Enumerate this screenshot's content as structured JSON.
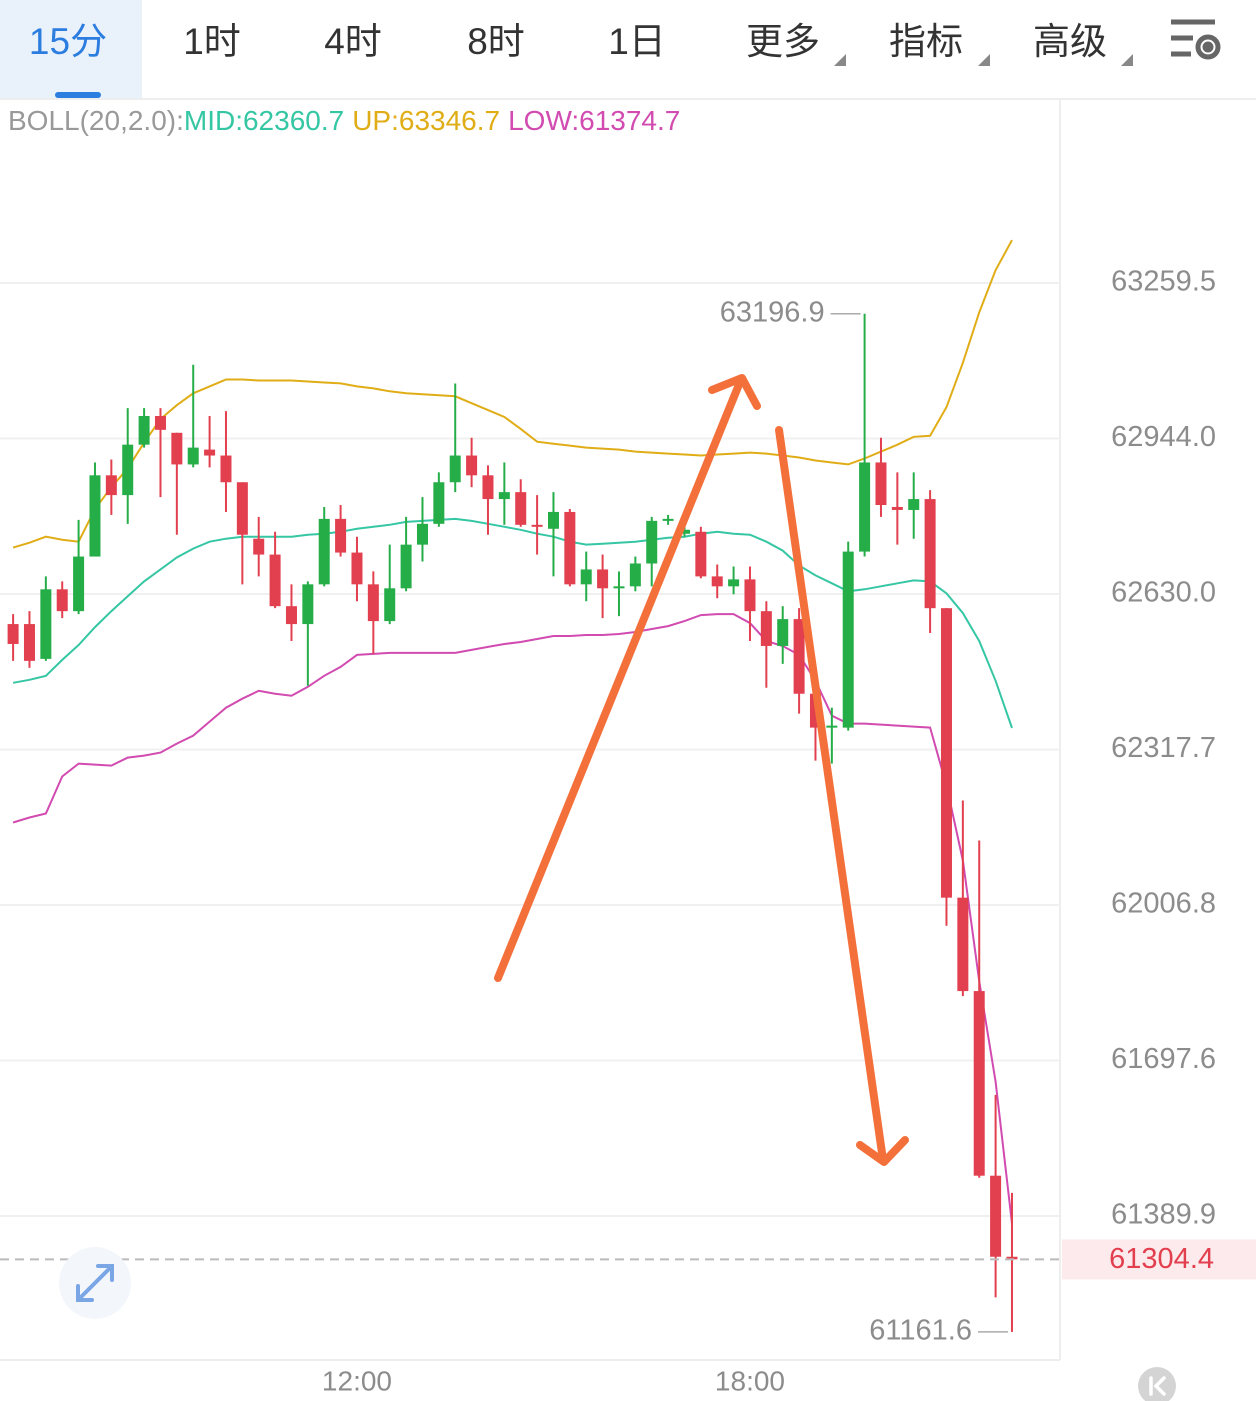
{
  "tabs": [
    "15分",
    "1时",
    "4时",
    "8时",
    "1日",
    "更多",
    "指标",
    "高级"
  ],
  "chart_data": {
    "type": "candlestick",
    "indicator_label": "BOLL(20,2.0):",
    "log_scale": true,
    "grid": true,
    "up_color": "#25ad48",
    "down_color": "#e2404f",
    "ylim": [
      61106.3,
      63632.8
    ],
    "yticks": [
      63259.5,
      {
        "value": 62944.0,
        "label": "62944.0"
      },
      {
        "value": 62630.0,
        "label": "62630.0"
      },
      62317.7,
      62006.8,
      61697.6,
      61389.9
    ],
    "categories": [
      null,
      null,
      null,
      null,
      null,
      null,
      null,
      null,
      null,
      null,
      null,
      null,
      null,
      null,
      null,
      null,
      null,
      null,
      null,
      null,
      null,
      "12:00",
      null,
      null,
      null,
      null,
      null,
      null,
      null,
      null,
      null,
      null,
      null,
      null,
      null,
      null,
      null,
      null,
      null,
      null,
      null,
      null,
      null,
      null,
      null,
      "18:00",
      null,
      null,
      null,
      null,
      null,
      null,
      null,
      null,
      null,
      null,
      null,
      null,
      null,
      null,
      null,
      null
    ],
    "open": [
      62569.5,
      62569.5,
      62499.5,
      62639.5,
      62595.5,
      62705.5,
      62869.5,
      62829.5,
      62931.5,
      62989.5,
      62955.5,
      62891.5,
      62921.5,
      62909.5,
      62855.5,
      62741.5,
      62709.5,
      62605.5,
      62569.5,
      62649.5,
      62781.5,
      62713.5,
      62649.5,
      62575.5,
      62641.5,
      62729.5,
      62771.5,
      62855.5,
      62909.5,
      62869.5,
      62821.5,
      62835.5,
      62769.5,
      62761.5,
      62795.5,
      62649.5,
      62679.5,
      62641.5,
      62645.5,
      62691.5,
      62777.5,
      62751.5,
      62755.5,
      62665.5,
      62645.5,
      62659.5,
      62595.5,
      62525.5,
      62579.5,
      62429.5,
      62361.5,
      62361.5,
      62715.5,
      62895.5,
      62805.5,
      62799.5,
      62821.5,
      62601.5,
      62021.5,
      61835.5,
      61469.5,
      61309.5
    ],
    "high": [
      62589.5,
      62595.5,
      62665.5,
      62655.5,
      62779.5,
      62895.5,
      62901.5,
      63005.5,
      63005.5,
      63005.5,
      62955.5,
      63093.5,
      62989.5,
      62999.5,
      62855.5,
      62785.5,
      62755.5,
      62649.5,
      62655.5,
      62805.5,
      62809.5,
      62745.5,
      62675.5,
      62729.5,
      62785.5,
      62825.5,
      62875.5,
      63055.5,
      62945.5,
      62889.5,
      62895.5,
      62861.5,
      62829.5,
      62835.5,
      62801.5,
      62715.5,
      62709.5,
      62675.5,
      62705.5,
      62785.5,
      62789.5,
      62785.5,
      62765.5,
      62689.5,
      62685.5,
      62685.5,
      62615.5,
      62605.5,
      62601.5,
      62445.5,
      62401.5,
      62735.5,
      63196.9,
      62945.5,
      62875.5,
      62875.5,
      62839.5,
      62601.5,
      62215.5,
      62135.5,
      61629.5,
      61435.5
    ],
    "low": [
      62495.5,
      62481.5,
      62495.5,
      62581.5,
      62589.5,
      62705.5,
      62789.5,
      62771.5,
      62925.5,
      62825.5,
      62749.5,
      62885.5,
      62885.5,
      62795.5,
      62649.5,
      62665.5,
      62601.5,
      62535.5,
      62445.5,
      62645.5,
      62705.5,
      62615.5,
      62509.5,
      62569.5,
      62635.5,
      62695.5,
      62765.5,
      62835.5,
      62845.5,
      62749.5,
      62769.5,
      62765.5,
      62709.5,
      62665.5,
      62645.5,
      62615.5,
      62581.5,
      62585.5,
      62635.5,
      62645.5,
      62769.5,
      62745.5,
      62661.5,
      62621.5,
      62629.5,
      62535.5,
      62441.5,
      62489.5,
      62389.5,
      62295.5,
      62289.5,
      62355.5,
      62705.5,
      62785.5,
      62729.5,
      62741.5,
      62551.5,
      61965.5,
      61825.5,
      61465.5,
      61229.5,
      61161.6
    ],
    "close": [
      62529.5,
      62495.5,
      62639.5,
      62595.5,
      62705.5,
      62869.5,
      62829.5,
      62931.5,
      62989.5,
      62961.5,
      62891.5,
      62925.5,
      62909.5,
      62855.5,
      62749.5,
      62709.5,
      62605.5,
      62569.5,
      62649.5,
      62781.5,
      62713.5,
      62649.5,
      62575.5,
      62641.5,
      62729.5,
      62771.5,
      62855.5,
      62909.5,
      62869.5,
      62821.5,
      62835.5,
      62769.5,
      62765.5,
      62795.5,
      62649.5,
      62679.5,
      62641.5,
      62645.5,
      62691.5,
      62777.5,
      62781.5,
      62759.5,
      62665.5,
      62645.5,
      62659.5,
      62595.5,
      62525.5,
      62579.5,
      62429.5,
      62361.5,
      62365.5,
      62715.5,
      62895.5,
      62809.5,
      62799.5,
      62821.5,
      62601.5,
      62021.5,
      61835.5,
      61469.5,
      61309.5,
      61304.4
    ],
    "series": [
      {
        "name": "MID:62360.7",
        "color": "#35c6a4",
        "values": [
          62451.5,
          62457.5,
          62465.5,
          62497.5,
          62527.5,
          62563.5,
          62595.5,
          62625.5,
          62655.5,
          62679.5,
          62703.5,
          62721.5,
          62735.5,
          62741.5,
          62745.5,
          62745.5,
          62745.5,
          62745.5,
          62749.5,
          62751.5,
          62755.5,
          62761.5,
          62765.5,
          62769.5,
          62775.5,
          62777.5,
          62779.5,
          62781.5,
          62777.5,
          62771.5,
          62765.5,
          62759.5,
          62751.5,
          62745.5,
          62735.5,
          62729.5,
          62731.5,
          62733.5,
          62735.5,
          62739.5,
          62743.5,
          62745.5,
          62751.5,
          62755.5,
          62751.5,
          62749.5,
          62735.5,
          62717.5,
          62687.5,
          62667.5,
          62651.5,
          62635.5,
          62639.5,
          62645.5,
          62651.5,
          62657.5,
          62655.5,
          62631.5,
          62591.5,
          62535.5,
          62455.5,
          62360.7
        ]
      },
      {
        "name": "UP:63346.7",
        "color": "#e0ad17",
        "values": [
          62723.5,
          62733.5,
          62745.5,
          62739.5,
          62735.5,
          62801.5,
          62845.5,
          62883.5,
          62935.5,
          62983.5,
          63011.5,
          63035.5,
          63049.5,
          63063.5,
          63063.5,
          63061.5,
          63061.5,
          63061.5,
          63059.5,
          63057.5,
          63055.5,
          63049.5,
          63045.5,
          63039.5,
          63035.5,
          63033.5,
          63031.5,
          63029.5,
          63015.5,
          63001.5,
          62987.5,
          62963.5,
          62937.5,
          62933.5,
          62929.5,
          62925.5,
          62923.5,
          62921.5,
          62917.5,
          62915.5,
          62913.5,
          62911.5,
          62909.5,
          62911.5,
          62913.5,
          62915.5,
          62913.5,
          62909.5,
          62905.5,
          62899.5,
          62895.5,
          62891.5,
          62903.5,
          62917.5,
          62931.5,
          62947.5,
          62949.5,
          63007.5,
          63097.5,
          63199.5,
          63285.5,
          63346.7
        ]
      },
      {
        "name": "LOW:61374.7",
        "color": "#d14bb0",
        "values": [
          62171.5,
          62181.5,
          62189.5,
          62263.5,
          62289.5,
          62287.5,
          62285.5,
          62301.5,
          62305.5,
          62311.5,
          62329.5,
          62345.5,
          62373.5,
          62401.5,
          62419.5,
          62435.5,
          62429.5,
          62425.5,
          62443.5,
          62465.5,
          62483.5,
          62507.5,
          62509.5,
          62511.5,
          62511.5,
          62511.5,
          62511.5,
          62511.5,
          62517.5,
          62523.5,
          62529.5,
          62533.5,
          62539.5,
          62545.5,
          62545.5,
          62547.5,
          62547.5,
          62549.5,
          62553.5,
          62559.5,
          62565.5,
          62575.5,
          62587.5,
          62589.5,
          62589.5,
          62571.5,
          62535.5,
          62525.5,
          62507.5,
          62455.5,
          62385.5,
          62369.5,
          62369.5,
          62367.5,
          62365.5,
          62363.5,
          62361.5,
          62245.5,
          62095.5,
          61855.5,
          61655.5,
          61374.7
        ]
      }
    ]
  }
}
